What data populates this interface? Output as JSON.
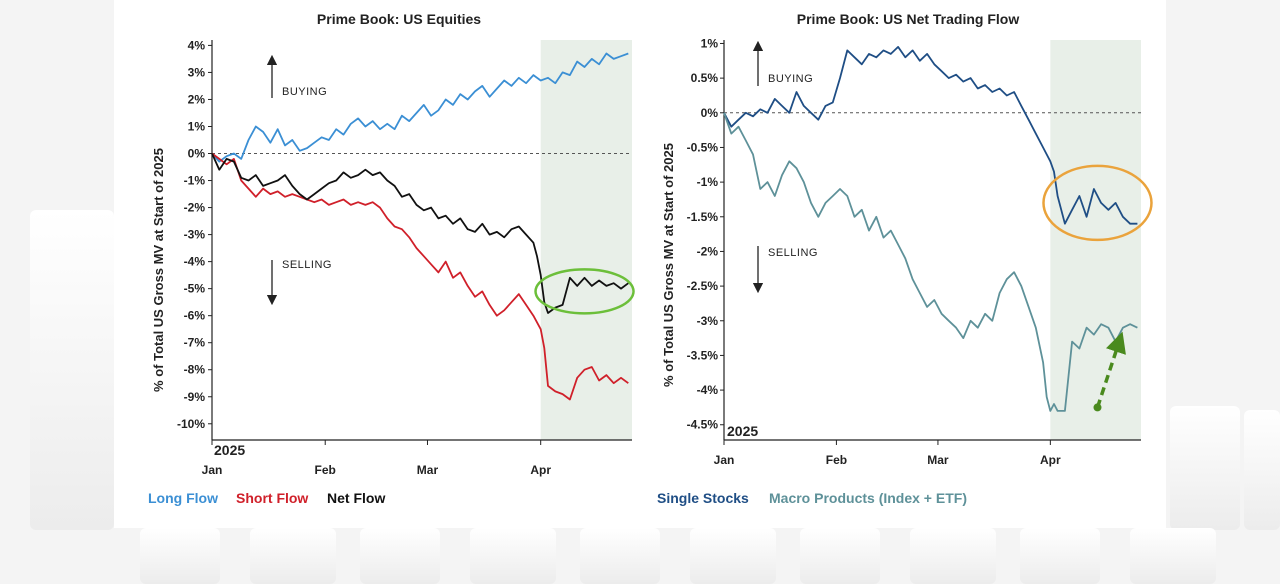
{
  "colors": {
    "long": "#3b8fd4",
    "short": "#d0202a",
    "net": "#111111",
    "single": "#1f4e85",
    "macro": "#5e9199",
    "green_circle": "#6cbf3a",
    "orange_circle": "#eaa33c",
    "green_arrow": "#4a8a1e",
    "shade": "#e8efe8"
  },
  "chart_data": [
    {
      "type": "line",
      "title": "Prime Book: US Equities",
      "ylabel": "% of Total US Gross MV at Start of 2025",
      "year_label": "2025",
      "xlim": [
        0,
        115
      ],
      "ylim": [
        -10.6,
        4.2
      ],
      "yticks": [
        4,
        3,
        2,
        1,
        0,
        -1,
        -2,
        -3,
        -4,
        -5,
        -6,
        -7,
        -8,
        -9,
        -10
      ],
      "ytick_labels": [
        "4%",
        "3%",
        "2%",
        "1%",
        "0%",
        "-1%",
        "-2%",
        "-3%",
        "-4%",
        "-5%",
        "-6%",
        "-7%",
        "-8%",
        "-9%",
        "-10%"
      ],
      "xticks": [
        0,
        31,
        59,
        90
      ],
      "xtick_labels": [
        "Jan",
        "Feb",
        "Mar",
        "Apr"
      ],
      "shade_from": 90,
      "annotations": {
        "buying": "BUYING",
        "selling": "SELLING"
      },
      "highlight": {
        "label": "green-circle",
        "x_center": 102,
        "y_center": -5.1
      },
      "series": [
        {
          "name": "Long Flow",
          "x": [
            0,
            2,
            4,
            6,
            8,
            10,
            12,
            14,
            16,
            18,
            20,
            22,
            24,
            26,
            28,
            30,
            32,
            34,
            36,
            38,
            40,
            42,
            44,
            46,
            48,
            50,
            52,
            54,
            56,
            58,
            60,
            62,
            64,
            66,
            68,
            70,
            72,
            74,
            76,
            78,
            80,
            82,
            84,
            86,
            88,
            90,
            92,
            94,
            96,
            98,
            100,
            102,
            104,
            106,
            108,
            110,
            112,
            114
          ],
          "values": [
            0,
            -0.3,
            -0.1,
            0,
            -0.2,
            0.5,
            1.0,
            0.8,
            0.4,
            0.9,
            0.3,
            0.5,
            0.1,
            0.2,
            0.4,
            0.6,
            0.5,
            0.9,
            0.7,
            1.1,
            1.3,
            1.0,
            1.2,
            0.9,
            1.1,
            0.9,
            1.4,
            1.2,
            1.5,
            1.8,
            1.4,
            1.6,
            2.0,
            1.8,
            2.2,
            2.0,
            2.3,
            2.5,
            2.1,
            2.4,
            2.7,
            2.5,
            2.8,
            2.6,
            2.9,
            2.7,
            2.8,
            2.6,
            3.0,
            2.9,
            3.4,
            3.2,
            3.5,
            3.3,
            3.7,
            3.5,
            3.6,
            3.7
          ]
        },
        {
          "name": "Short Flow",
          "x": [
            0,
            2,
            4,
            6,
            8,
            10,
            12,
            14,
            16,
            18,
            20,
            22,
            24,
            26,
            28,
            30,
            32,
            34,
            36,
            38,
            40,
            42,
            44,
            46,
            48,
            50,
            52,
            54,
            56,
            58,
            60,
            62,
            64,
            66,
            68,
            70,
            72,
            74,
            76,
            78,
            80,
            82,
            84,
            86,
            88,
            90,
            91,
            92,
            94,
            96,
            98,
            100,
            102,
            104,
            106,
            108,
            110,
            112,
            114
          ],
          "values": [
            0,
            -0.2,
            -0.4,
            -0.2,
            -1.0,
            -1.3,
            -1.6,
            -1.3,
            -1.5,
            -1.4,
            -1.6,
            -1.5,
            -1.6,
            -1.7,
            -1.8,
            -1.7,
            -1.9,
            -1.8,
            -1.7,
            -1.9,
            -1.8,
            -1.9,
            -1.8,
            -2.0,
            -2.4,
            -2.7,
            -2.8,
            -3.1,
            -3.5,
            -3.8,
            -4.1,
            -4.4,
            -4.0,
            -4.6,
            -4.4,
            -4.9,
            -5.3,
            -5.1,
            -5.6,
            -6.0,
            -5.8,
            -5.5,
            -5.2,
            -5.6,
            -6.0,
            -6.5,
            -7.2,
            -8.6,
            -8.8,
            -8.9,
            -9.1,
            -8.3,
            -8.0,
            -7.9,
            -8.4,
            -8.2,
            -8.5,
            -8.3,
            -8.5
          ]
        },
        {
          "name": "Net Flow",
          "x": [
            0,
            2,
            4,
            6,
            8,
            10,
            12,
            14,
            16,
            18,
            20,
            22,
            24,
            26,
            28,
            30,
            32,
            34,
            36,
            38,
            40,
            42,
            44,
            46,
            48,
            50,
            52,
            54,
            56,
            58,
            60,
            62,
            64,
            66,
            68,
            70,
            72,
            74,
            76,
            78,
            80,
            82,
            84,
            86,
            88,
            89,
            90,
            91,
            92,
            94,
            96,
            98,
            100,
            102,
            104,
            106,
            108,
            110,
            112,
            114
          ],
          "values": [
            0,
            -0.6,
            -0.2,
            -0.3,
            -0.9,
            -1.0,
            -0.8,
            -1.2,
            -1.1,
            -1.0,
            -0.8,
            -1.2,
            -1.5,
            -1.7,
            -1.5,
            -1.3,
            -1.1,
            -1.0,
            -0.7,
            -0.9,
            -0.8,
            -0.6,
            -0.8,
            -0.7,
            -1.0,
            -1.2,
            -1.6,
            -1.5,
            -1.9,
            -2.1,
            -2.0,
            -2.4,
            -2.3,
            -2.6,
            -2.4,
            -2.8,
            -2.9,
            -2.6,
            -3.0,
            -2.9,
            -3.1,
            -2.8,
            -2.7,
            -3.0,
            -3.3,
            -3.8,
            -4.5,
            -5.5,
            -5.9,
            -5.7,
            -5.6,
            -4.6,
            -4.9,
            -4.6,
            -4.9,
            -4.7,
            -4.9,
            -4.8,
            -5.0,
            -4.8
          ]
        }
      ]
    },
    {
      "type": "line",
      "title": "Prime Book: US Net Trading Flow",
      "ylabel": "% of Total US Gross MV at Start of 2025",
      "year_label": "2025",
      "xlim": [
        0,
        115
      ],
      "ylim": [
        -4.72,
        1.05
      ],
      "yticks": [
        1,
        0.5,
        0,
        -0.5,
        -1,
        -1.5,
        -2,
        -2.5,
        -3,
        -3.5,
        -4,
        -4.5
      ],
      "ytick_labels": [
        "1%",
        "0.5%",
        "0%",
        "-0.5%",
        "-1%",
        "-1.5%",
        "-2%",
        "-2.5%",
        "-3%",
        "-3.5%",
        "-4%",
        "-4.5%"
      ],
      "xticks": [
        0,
        31,
        59,
        90
      ],
      "xtick_labels": [
        "Jan",
        "Feb",
        "Mar",
        "Apr"
      ],
      "shade_from": 90,
      "annotations": {
        "buying": "BUYING",
        "selling": "SELLING"
      },
      "highlight": {
        "label": "orange-circle",
        "x_center": 103,
        "y_center": -1.3
      },
      "arrow": {
        "from": [
          103,
          -4.25
        ],
        "to": [
          109,
          -3.3
        ]
      },
      "series": [
        {
          "name": "Single Stocks",
          "x": [
            0,
            2,
            4,
            6,
            8,
            10,
            12,
            14,
            16,
            18,
            20,
            22,
            24,
            26,
            28,
            30,
            32,
            34,
            36,
            38,
            40,
            42,
            44,
            46,
            48,
            50,
            52,
            54,
            56,
            58,
            60,
            62,
            64,
            66,
            68,
            70,
            72,
            74,
            76,
            78,
            80,
            82,
            84,
            86,
            88,
            90,
            91,
            92,
            94,
            96,
            98,
            100,
            102,
            104,
            106,
            108,
            110,
            112,
            114
          ],
          "values": [
            0,
            -0.2,
            -0.1,
            0,
            -0.05,
            0.05,
            0,
            0.2,
            0.1,
            0,
            0.3,
            0.1,
            0,
            -0.1,
            0.1,
            0.15,
            0.5,
            0.9,
            0.8,
            0.7,
            0.85,
            0.8,
            0.9,
            0.85,
            0.95,
            0.8,
            0.9,
            0.75,
            0.85,
            0.7,
            0.6,
            0.5,
            0.55,
            0.45,
            0.5,
            0.35,
            0.4,
            0.3,
            0.35,
            0.25,
            0.3,
            0.1,
            -0.1,
            -0.3,
            -0.5,
            -0.7,
            -0.85,
            -1.2,
            -1.6,
            -1.4,
            -1.2,
            -1.5,
            -1.1,
            -1.3,
            -1.4,
            -1.3,
            -1.5,
            -1.6,
            -1.6
          ]
        },
        {
          "name": "Macro Products (Index + ETF)",
          "x": [
            0,
            2,
            4,
            6,
            8,
            10,
            12,
            14,
            16,
            18,
            20,
            22,
            24,
            26,
            28,
            30,
            32,
            34,
            36,
            38,
            40,
            42,
            44,
            46,
            48,
            50,
            52,
            54,
            56,
            58,
            60,
            62,
            64,
            66,
            68,
            70,
            72,
            74,
            76,
            78,
            80,
            82,
            84,
            86,
            88,
            89,
            90,
            91,
            92,
            94,
            96,
            98,
            100,
            102,
            104,
            106,
            108,
            110,
            112,
            114
          ],
          "values": [
            0,
            -0.3,
            -0.2,
            -0.4,
            -0.6,
            -1.1,
            -1.0,
            -1.2,
            -0.9,
            -0.7,
            -0.8,
            -1.0,
            -1.3,
            -1.5,
            -1.3,
            -1.2,
            -1.1,
            -1.2,
            -1.5,
            -1.4,
            -1.7,
            -1.5,
            -1.8,
            -1.7,
            -1.9,
            -2.1,
            -2.4,
            -2.6,
            -2.8,
            -2.7,
            -2.9,
            -3.0,
            -3.1,
            -3.25,
            -3.0,
            -3.1,
            -2.9,
            -3.0,
            -2.6,
            -2.4,
            -2.3,
            -2.5,
            -2.8,
            -3.1,
            -3.6,
            -4.1,
            -4.3,
            -4.2,
            -4.3,
            -4.3,
            -3.3,
            -3.4,
            -3.1,
            -3.2,
            -3.05,
            -3.1,
            -3.3,
            -3.1,
            -3.05,
            -3.1
          ]
        }
      ]
    }
  ]
}
